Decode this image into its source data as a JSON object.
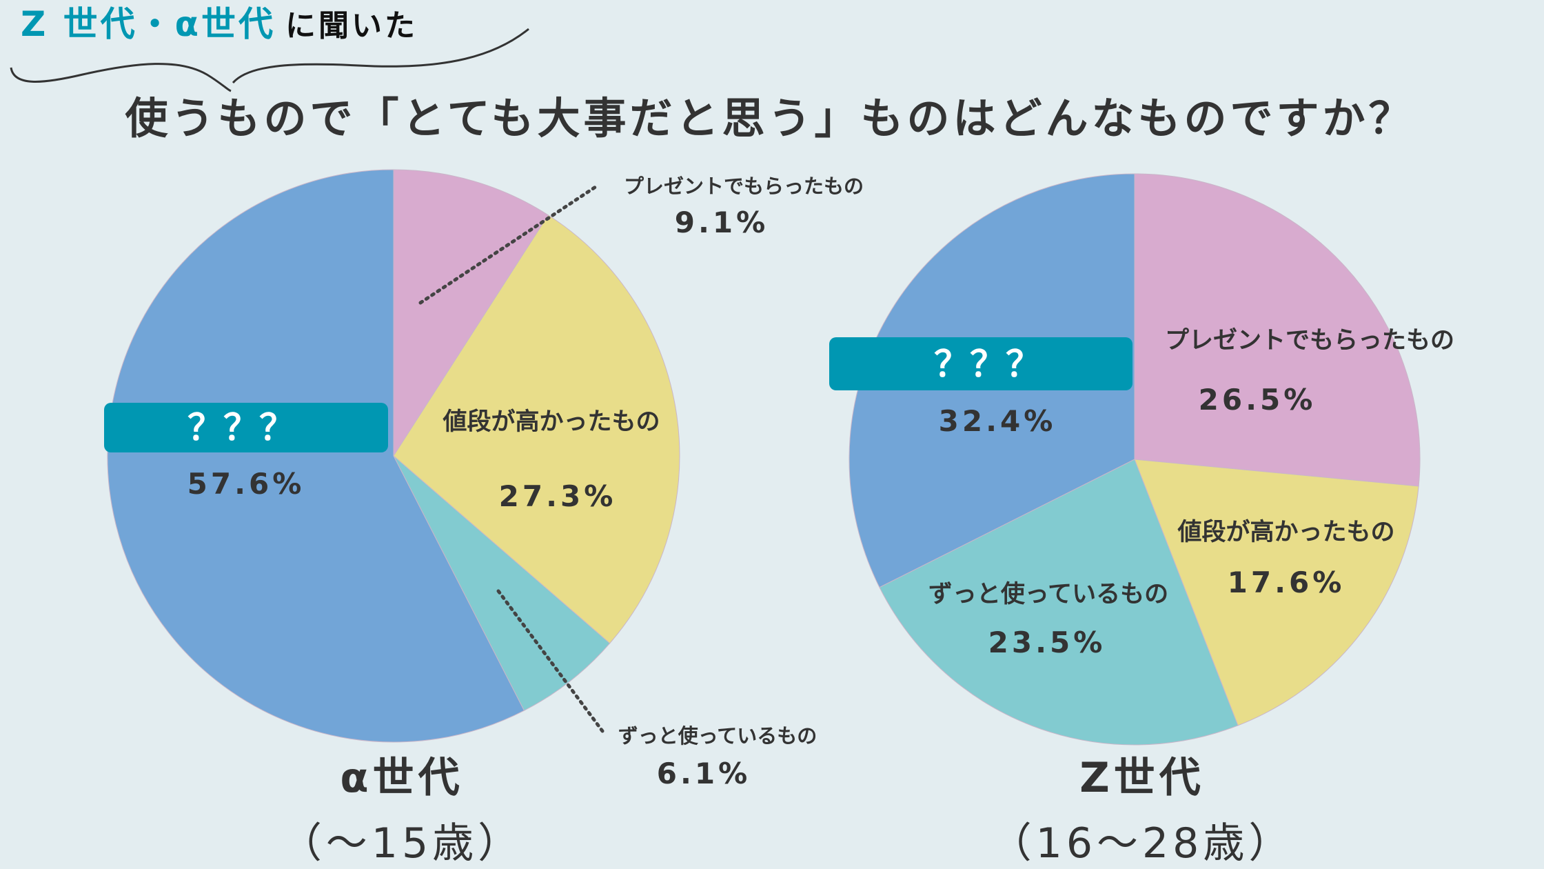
{
  "header": {
    "tag_colored": "Z 世代・α世代",
    "tag_plain": "に聞いた",
    "tag_color": "#0097b2"
  },
  "chart_data": [
    {
      "type": "pie",
      "title": "使うもので「とても大事だと思う」ものはどんなものですか？",
      "group": "α世代",
      "group_sub": "（～15歳）",
      "slices": [
        {
          "label": "プレゼントでもらったもの",
          "value": 9.1,
          "value_text": "9.1%",
          "color": "#d8abcf"
        },
        {
          "label": "値段が高かったもの",
          "value": 27.3,
          "value_text": "27.3%",
          "color": "#e8dd8a"
        },
        {
          "label": "ずっと使っているもの",
          "value": 6.1,
          "value_text": "6.1%",
          "color": "#82cbd0"
        },
        {
          "label": "？？？",
          "value": 57.6,
          "value_text": "57.6%",
          "color": "#72a5d7"
        }
      ]
    },
    {
      "type": "pie",
      "title": "使うもので「とても大事だと思う」ものはどんなものですか？",
      "group": "Z世代",
      "group_sub": "（16～28歳）",
      "slices": [
        {
          "label": "プレゼントでもらったもの",
          "value": 26.5,
          "value_text": "26.5%",
          "color": "#d8abcf"
        },
        {
          "label": "値段が高かったもの",
          "value": 17.6,
          "value_text": "17.6%",
          "color": "#e8dd8a"
        },
        {
          "label": "ずっと使っているもの",
          "value": 23.5,
          "value_text": "23.5%",
          "color": "#82cbd0"
        },
        {
          "label": "？？？",
          "value": 32.4,
          "value_text": "32.4%",
          "color": "#72a5d7"
        }
      ]
    }
  ],
  "colors": {
    "box": "#0097b2",
    "text": "#333333",
    "background": "#e3edf0"
  }
}
